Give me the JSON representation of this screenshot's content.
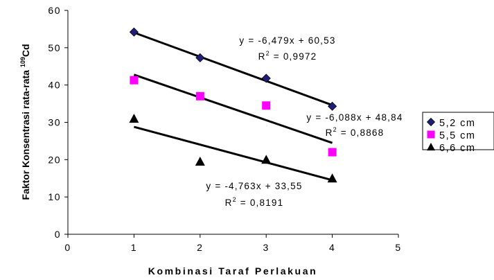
{
  "chart_data": {
    "type": "scatter",
    "xlabel": "Kombinasi Taraf Perlakuan",
    "ylabel": {
      "prefix": "Faktor Konsentrasi rata-rata ",
      "superscript": "109",
      "suffix": "Cd"
    },
    "xlim": [
      0,
      5
    ],
    "ylim": [
      0,
      60
    ],
    "x_ticks": [
      "0",
      "1",
      "2",
      "3",
      "4",
      "5"
    ],
    "y_ticks": [
      "0",
      "10",
      "20",
      "30",
      "40",
      "50",
      "60"
    ],
    "grid": false,
    "legend_position": "right",
    "series": [
      {
        "name": "5,2 cm",
        "marker": "diamond",
        "color": "#1f1f7a",
        "x": [
          1,
          2,
          3,
          4
        ],
        "y": [
          54.2,
          47.3,
          41.8,
          34.3
        ],
        "trendline": {
          "slope": -6.479,
          "intercept": 60.53
        },
        "equation": "y = -6,479x + 60,53",
        "r2_prefix": "R",
        "r2_value": " = 0,9972"
      },
      {
        "name": "5,5 cm",
        "marker": "square",
        "color": "#ff00ff",
        "x": [
          1,
          2,
          3,
          4
        ],
        "y": [
          41.3,
          37.0,
          34.5,
          22.0
        ],
        "trendline": {
          "slope": -6.088,
          "intercept": 48.84
        },
        "equation": "y = -6,088x + 48,84",
        "r2_prefix": "R",
        "r2_value": " = 0,8868"
      },
      {
        "name": "6,6 cm",
        "marker": "triangle",
        "color": "#000000",
        "x": [
          1,
          2,
          3,
          4
        ],
        "y": [
          31.0,
          19.5,
          20.0,
          15.0
        ],
        "trendline": {
          "slope": -4.763,
          "intercept": 33.55
        },
        "equation": "y = -4,763x + 33,55",
        "r2_prefix": "R",
        "r2_value": " = 0,8191"
      }
    ]
  }
}
